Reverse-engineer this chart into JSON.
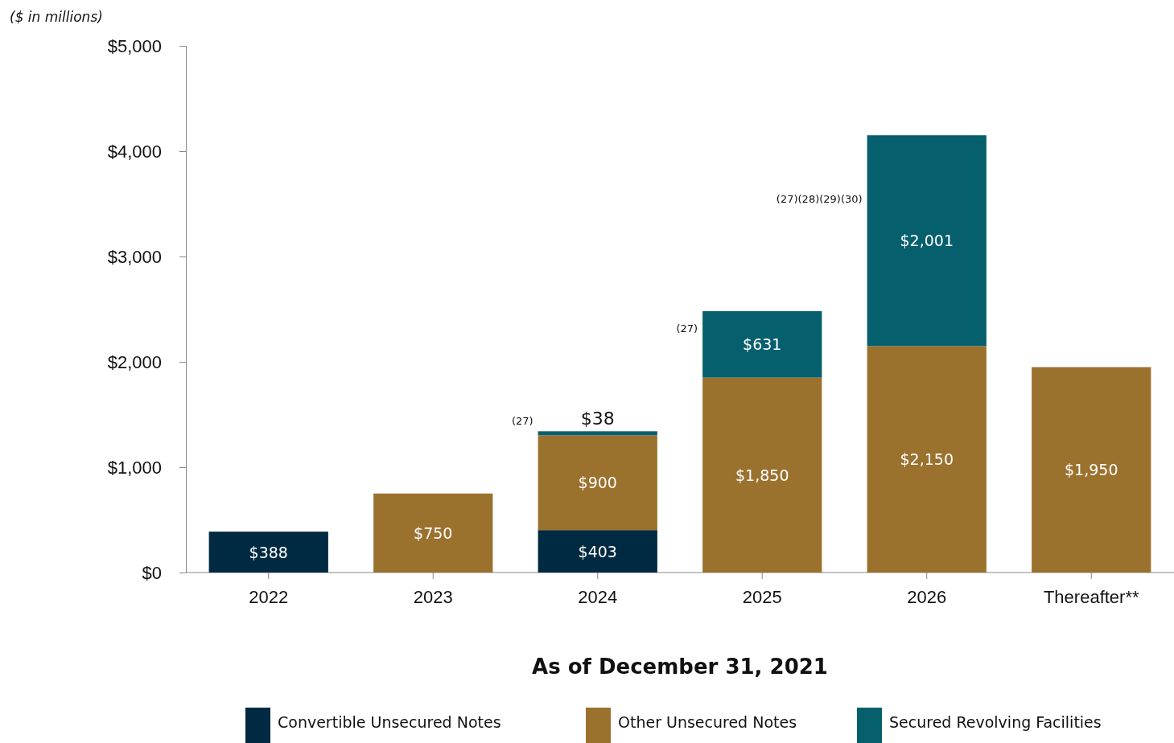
{
  "chart_data": {
    "type": "bar",
    "stacked": true,
    "ylabel": "($ in millions)",
    "xlabel": "As of December 31, 2021",
    "categories": [
      "2022",
      "2023",
      "2024",
      "2025",
      "2026",
      "Thereafter**"
    ],
    "series": [
      {
        "name": "Convertible Unsecured Notes",
        "color": "#002a41",
        "values": [
          388,
          null,
          403,
          null,
          null,
          null
        ],
        "value_labels": [
          "$388",
          null,
          "$403",
          null,
          null,
          null
        ]
      },
      {
        "name": "Other Unsecured Notes",
        "color": "#9b712e",
        "values": [
          null,
          750,
          900,
          1850,
          2150,
          1950
        ],
        "value_labels": [
          null,
          "$750",
          "$900",
          "$1,850",
          "$2,150",
          "$1,950"
        ]
      },
      {
        "name": "Secured Revolving Facilities",
        "color": "#065f6d",
        "values": [
          null,
          null,
          38,
          631,
          2001,
          null
        ],
        "value_labels": [
          null,
          null,
          "$38",
          "$631",
          "$2,001",
          null
        ]
      }
    ],
    "ylim": [
      0,
      5000
    ],
    "yticks": [
      {
        "value": 0,
        "label": "$0"
      },
      {
        "value": 1000,
        "label": "$1,000"
      },
      {
        "value": 2000,
        "label": "$2,000"
      },
      {
        "value": 3000,
        "label": "$3,000"
      },
      {
        "value": 4000,
        "label": "$4,000"
      },
      {
        "value": 5000,
        "label": "$5,000"
      }
    ],
    "grid": false,
    "legend": "bottom",
    "annotations": [
      "(27)",
      "(27)",
      "(27)(28)(29)(30)"
    ]
  }
}
